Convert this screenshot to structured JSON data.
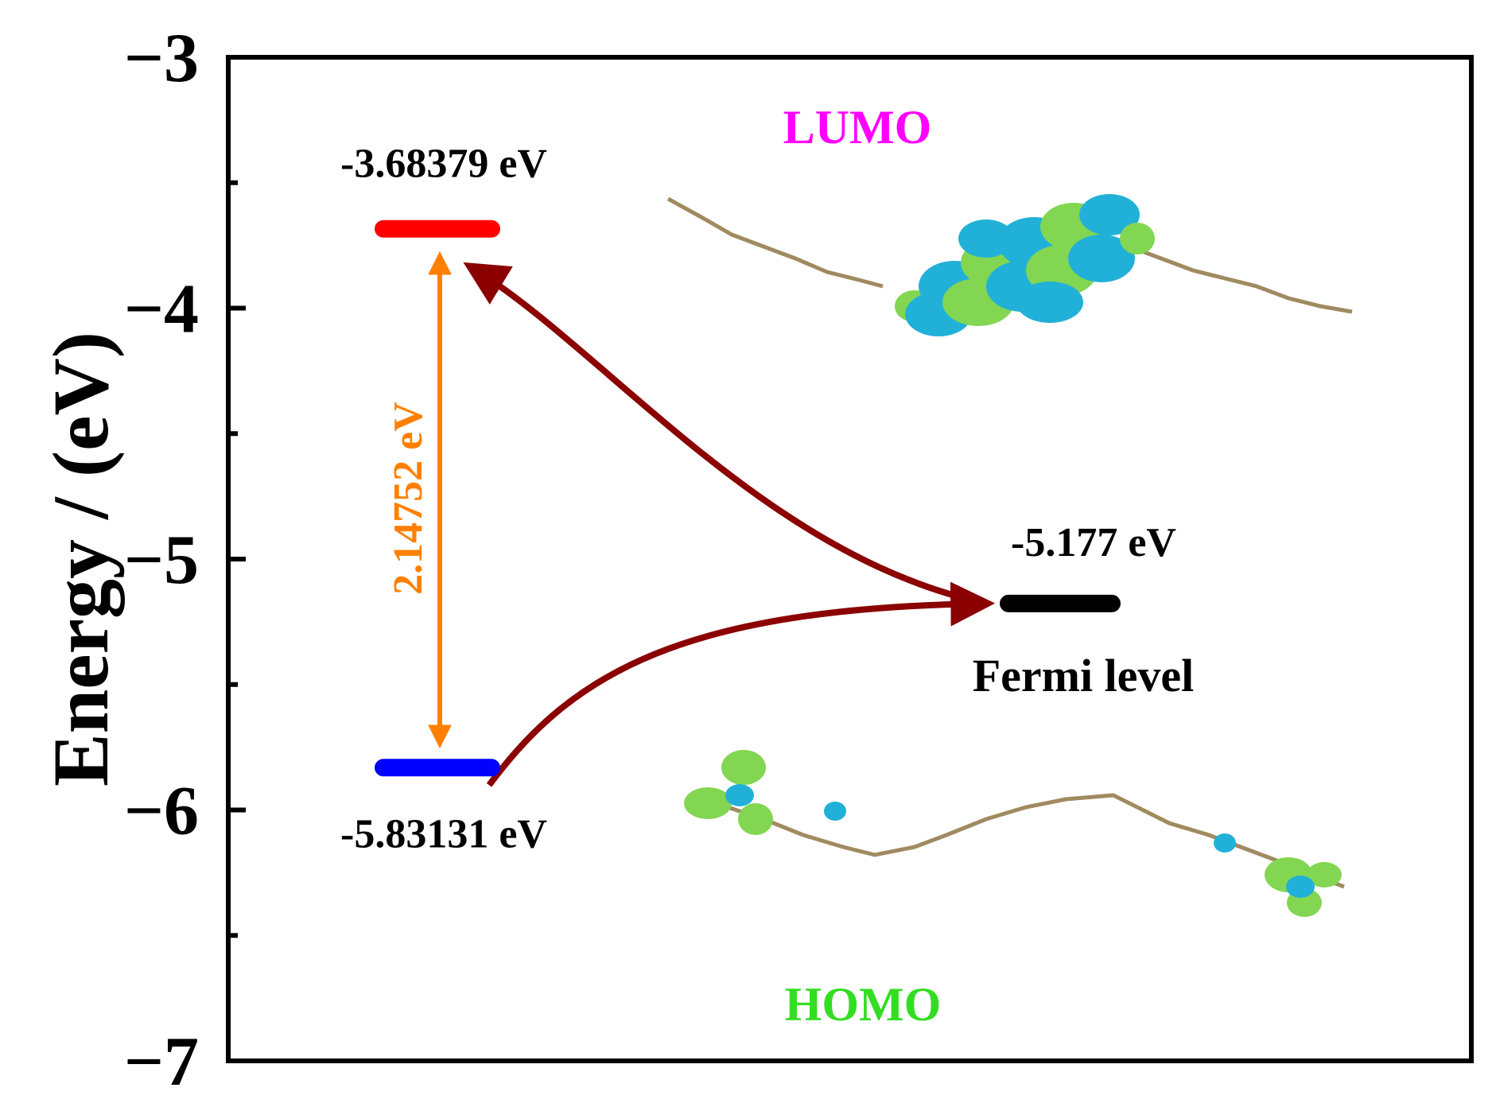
{
  "chart_data": {
    "type": "energy-level-diagram",
    "title": "",
    "ylabel": "Energy / (eV)",
    "xlabel": "",
    "ylim": [
      -7,
      -3
    ],
    "yticks": [
      {
        "value": -3,
        "label": "−3"
      },
      {
        "value": -4,
        "label": "−4"
      },
      {
        "value": -5,
        "label": "−5"
      },
      {
        "value": -6,
        "label": "−6"
      },
      {
        "value": -7,
        "label": "−7"
      }
    ],
    "minor_yticks": [
      -3.5,
      -4.5,
      -5.5,
      -6.5
    ],
    "grid": false,
    "levels": [
      {
        "name": "LUMO",
        "energy": -3.68379,
        "label": "-3.68379 eV",
        "color": "#ff0000"
      },
      {
        "name": "HOMO",
        "energy": -5.83131,
        "label": "-5.83131 eV",
        "color": "#0000ff"
      },
      {
        "name": "Fermi",
        "energy": -5.177,
        "label": "-5.177 eV",
        "caption": "Fermi level",
        "color": "#000000"
      }
    ],
    "gap": {
      "value": 2.14752,
      "label": "2.14752 eV",
      "color": "#ff8000"
    },
    "orbital_labels": [
      {
        "text": "LUMO",
        "color": "#ff00ff"
      },
      {
        "text": "HOMO",
        "color": "#33dd22"
      }
    ],
    "arrow_color": "#8b0000"
  }
}
